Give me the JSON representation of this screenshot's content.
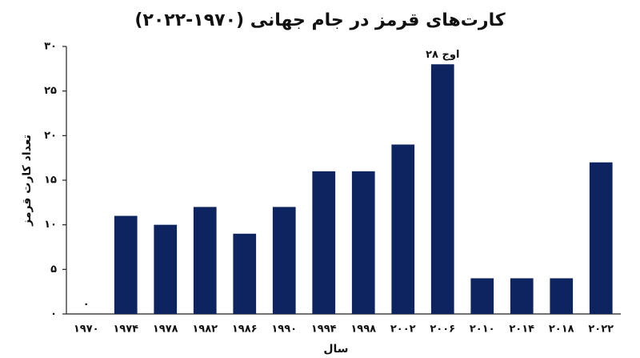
{
  "chart_data": {
    "type": "bar",
    "title": "کارت‌های قرمز در جام جهانی (۱۹۷۰-۲۰۲۲)",
    "x_label": "سال",
    "y_label": "تعداد کارت قرمز",
    "categories": [
      "۱۹۷۰",
      "۱۹۷۴",
      "۱۹۷۸",
      "۱۹۸۲",
      "۱۹۸۶",
      "۱۹۹۰",
      "۱۹۹۴",
      "۱۹۹۸",
      "۲۰۰۲",
      "۲۰۰۶",
      "۲۰۱۰",
      "۲۰۱۴",
      "۲۰۱۸",
      "۲۰۲۲"
    ],
    "values": [
      0,
      11,
      10,
      12,
      9,
      12,
      16,
      16,
      19,
      28,
      4,
      4,
      4,
      17
    ],
    "value_labels": [
      "۰",
      null,
      null,
      null,
      null,
      null,
      null,
      null,
      null,
      "اوج ۲۸",
      null,
      null,
      null,
      null
    ],
    "color": "#0d2461",
    "ylim": [
      0,
      30
    ],
    "yticks": [
      {
        "value": 0,
        "label": "۰"
      },
      {
        "value": 5,
        "label": "۵"
      },
      {
        "value": 10,
        "label": "۱۰"
      },
      {
        "value": 15,
        "label": "۱۵"
      },
      {
        "value": 20,
        "label": "۲۰"
      },
      {
        "value": 25,
        "label": "۲۵"
      },
      {
        "value": 30,
        "label": "۳۰"
      }
    ],
    "grid": false
  }
}
